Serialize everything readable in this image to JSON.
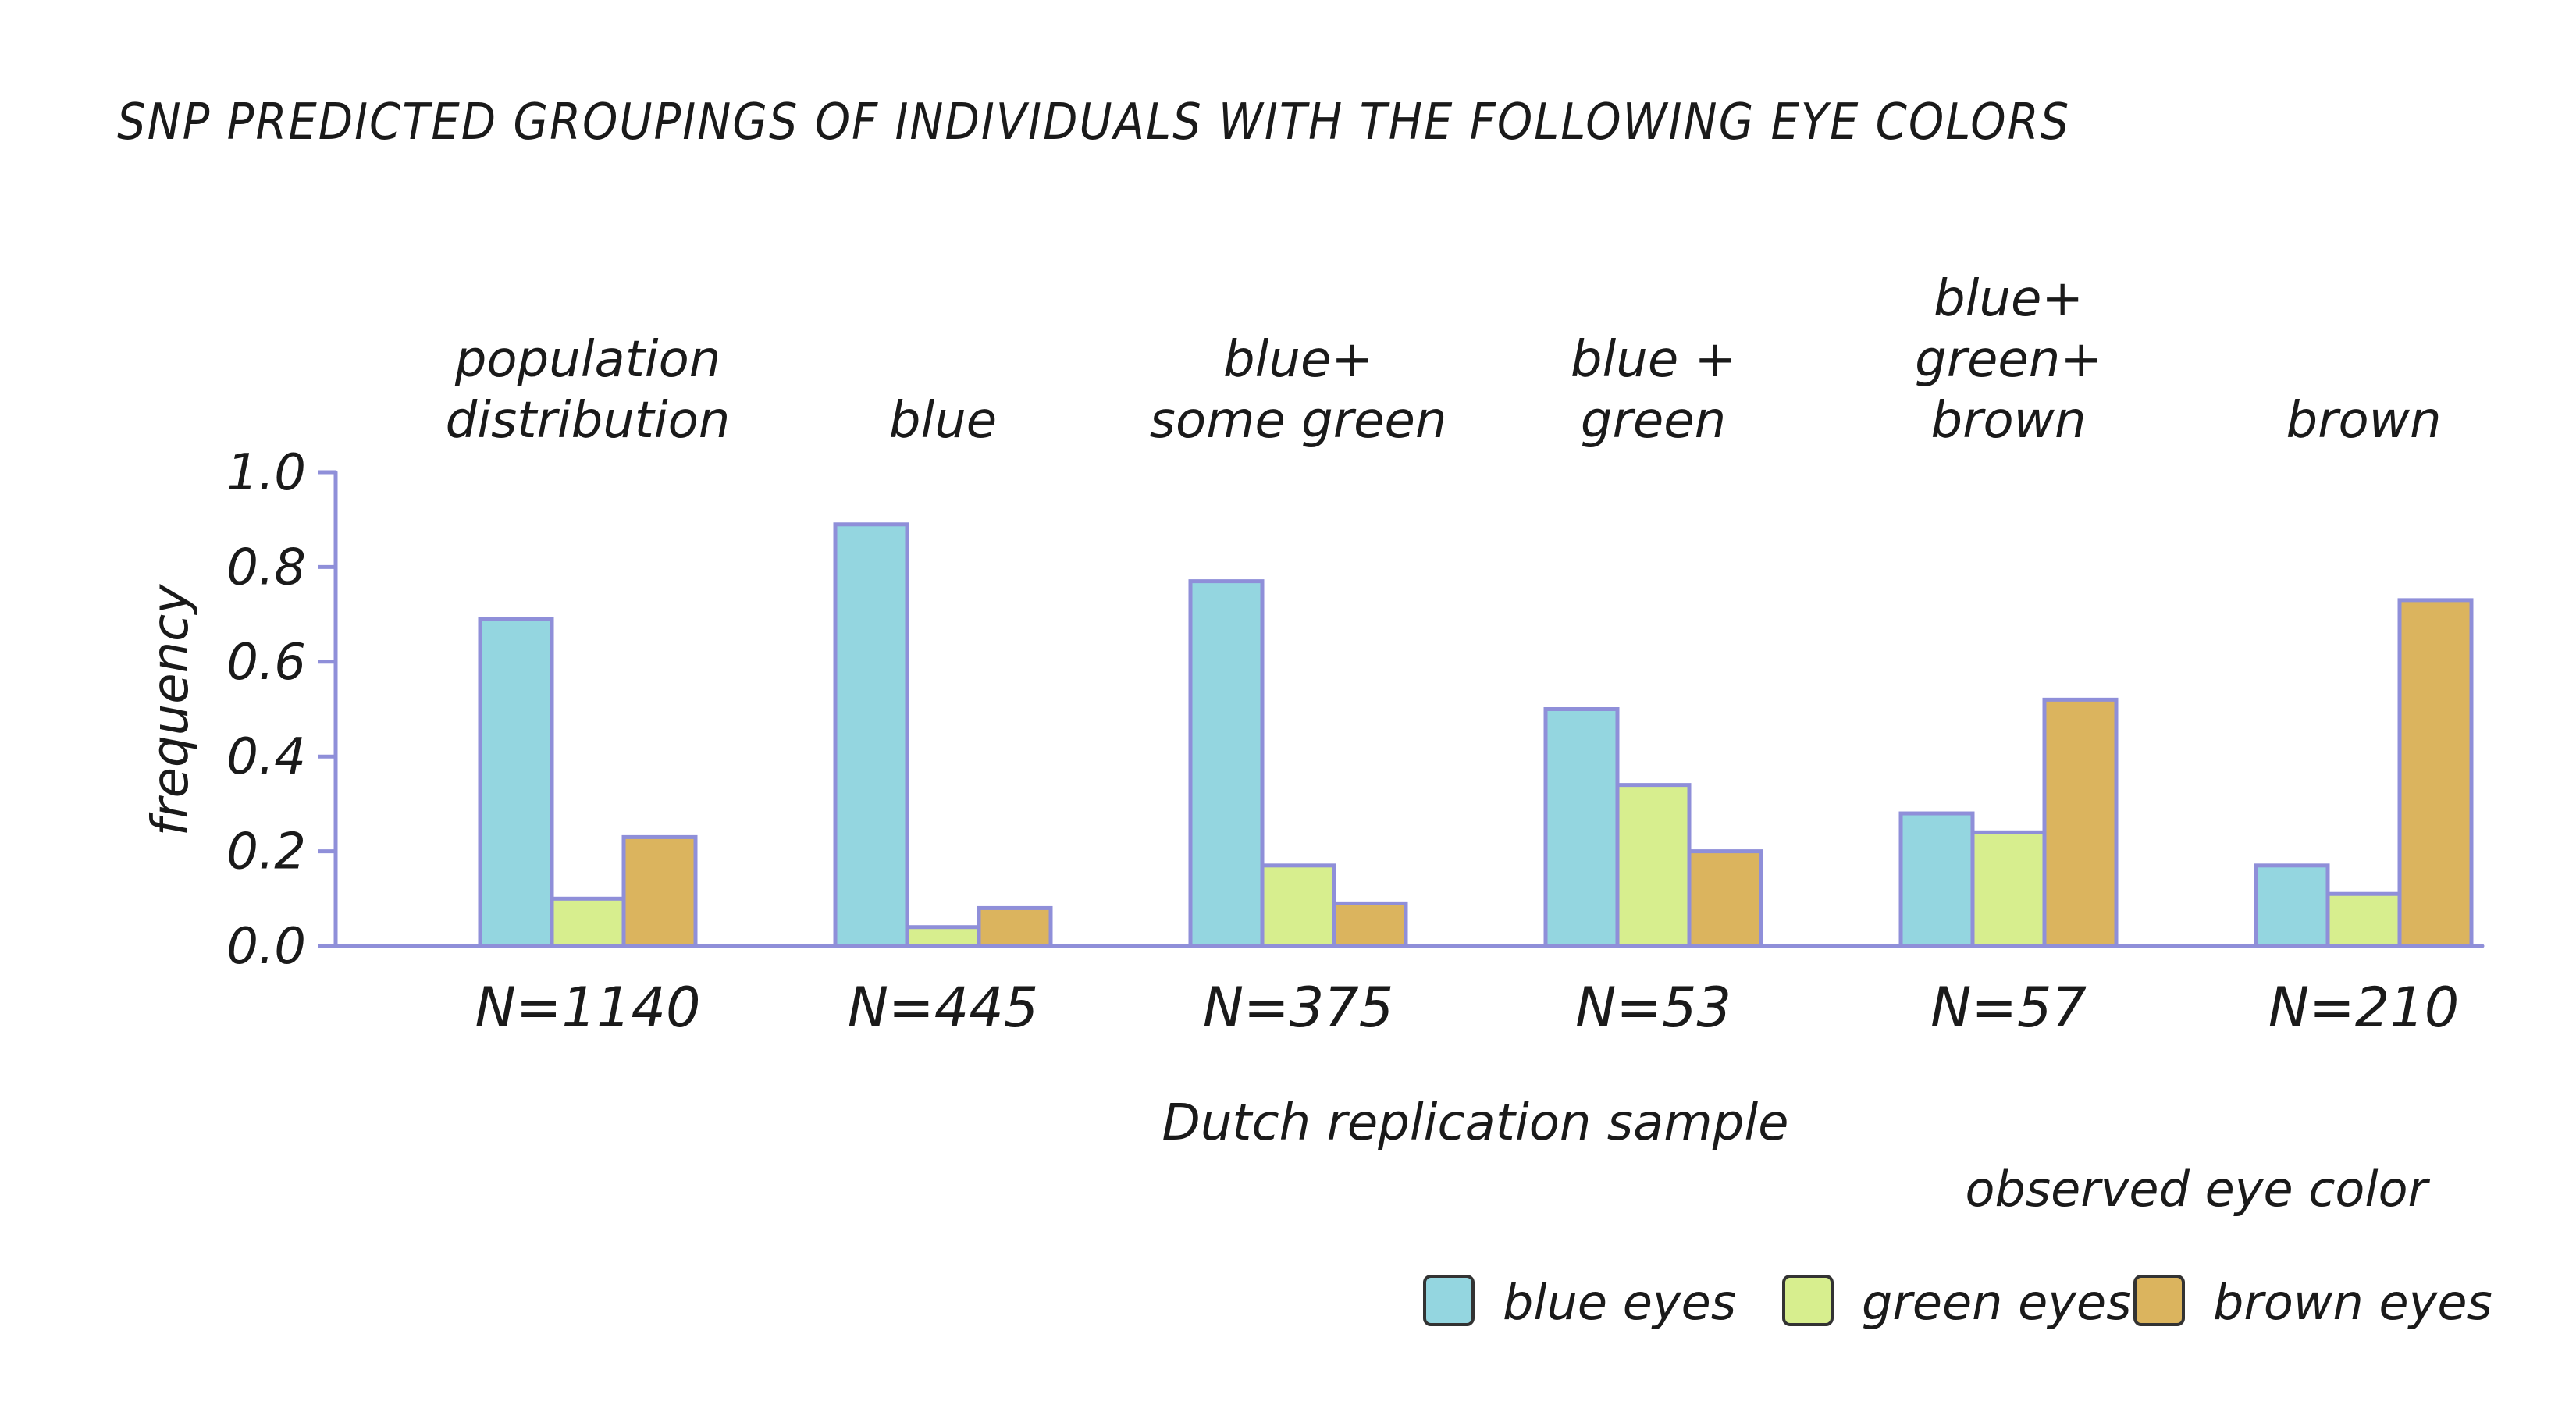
{
  "chart_data": {
    "type": "bar",
    "title": "SNP PREDICTED GROUPINGS OF INDIVIDUALS WITH THE FOLLOWING EYE COLORS",
    "xlabel": "Dutch replication sample",
    "ylabel": "frequency",
    "ylim": [
      0,
      1.0
    ],
    "y_ticks": [
      "0.0",
      "0.2",
      "0.4",
      "0.6",
      "0.8",
      "1.0"
    ],
    "grid": false,
    "legend_title": "observed eye color",
    "legend_position": "bottom-right",
    "categories": [
      {
        "lines": [
          "population",
          "distribution"
        ],
        "n": "N=1140"
      },
      {
        "lines": [
          "blue"
        ],
        "n": "N=445"
      },
      {
        "lines": [
          "blue+",
          "some green"
        ],
        "n": "N=375"
      },
      {
        "lines": [
          "blue +",
          "green"
        ],
        "n": "N=53"
      },
      {
        "lines": [
          "blue+",
          "green+",
          "brown"
        ],
        "n": "N=57"
      },
      {
        "lines": [
          "brown"
        ],
        "n": "N=210"
      }
    ],
    "series": [
      {
        "name": "blue eyes",
        "color": "#94d6e0",
        "values": [
          0.69,
          0.89,
          0.77,
          0.5,
          0.28,
          0.17
        ]
      },
      {
        "name": "green eyes",
        "color": "#d7ee8e",
        "values": [
          0.1,
          0.04,
          0.17,
          0.34,
          0.24,
          0.11
        ]
      },
      {
        "name": "brown eyes",
        "color": "#dbb45e",
        "values": [
          0.23,
          0.08,
          0.09,
          0.2,
          0.52,
          0.73
        ]
      }
    ],
    "axis_color": "#8f8fd9"
  }
}
